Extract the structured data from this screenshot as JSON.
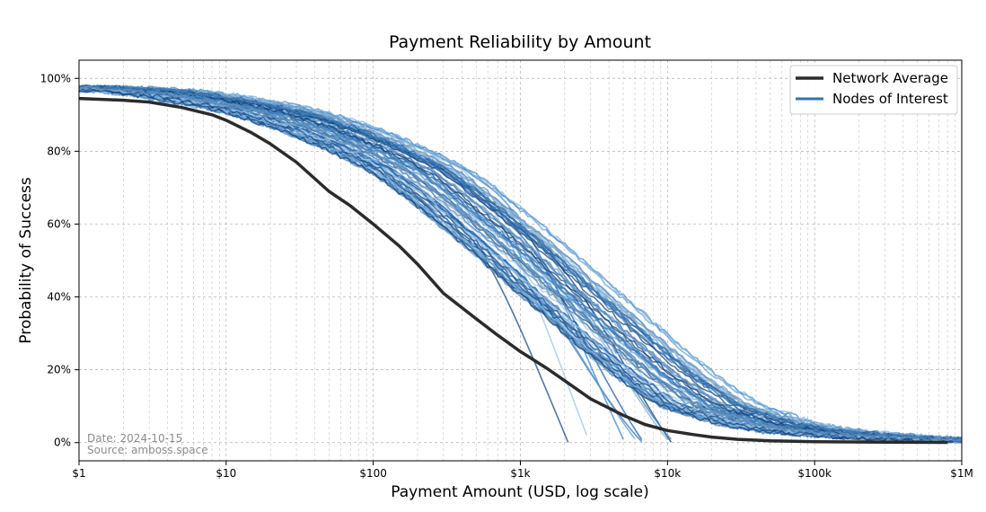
{
  "chart_data": {
    "type": "line",
    "title": "Payment Reliability by Amount",
    "xlabel": "Payment Amount (USD, log scale)",
    "ylabel": "Probability of Success",
    "xscale": "log",
    "xlim": [
      1,
      1000000
    ],
    "ylim": [
      -5,
      105
    ],
    "grid": true,
    "x_ticks": [
      1,
      10,
      100,
      1000,
      10000,
      100000,
      1000000
    ],
    "x_tick_labels": [
      "$1",
      "$10",
      "$100",
      "$1k",
      "$10k",
      "$100k",
      "$1M"
    ],
    "y_ticks": [
      0,
      20,
      40,
      60,
      80,
      100
    ],
    "y_tick_labels": [
      "0%",
      "20%",
      "40%",
      "60%",
      "80%",
      "100%"
    ],
    "legend_position": "top-right",
    "series": [
      {
        "name": "Network Average",
        "color": "#2b2b2b",
        "x": [
          1,
          2,
          3,
          5,
          8,
          10,
          15,
          20,
          30,
          50,
          70,
          100,
          150,
          200,
          300,
          500,
          700,
          1000,
          1500,
          2000,
          3000,
          5000,
          7000,
          10000,
          15000,
          20000,
          30000,
          50000,
          100000,
          300000,
          800000
        ],
        "y": [
          94.5,
          94,
          93.5,
          92,
          90,
          88.5,
          85,
          82,
          77,
          69,
          65,
          60,
          54,
          49,
          41,
          34,
          29.5,
          25,
          20.5,
          17,
          12,
          7.5,
          5,
          3.3,
          2.2,
          1.5,
          0.9,
          0.5,
          0.25,
          0.1,
          0.05
        ]
      },
      {
        "name": "Nodes of Interest",
        "color": "#2e74b5",
        "x": [
          1,
          2,
          3,
          5,
          10,
          20,
          30,
          50,
          100,
          200,
          300,
          500,
          1000,
          2000,
          3000,
          5000,
          10000,
          20000,
          50000,
          100000,
          300000,
          1000000
        ],
        "y": [
          97.5,
          97,
          96.5,
          95.5,
          93.5,
          91,
          89,
          86,
          81,
          75,
          70,
          63,
          53,
          42,
          36,
          28,
          18,
          10,
          5,
          3,
          1.5,
          0.5
        ]
      }
    ]
  },
  "notes": {
    "date": "Date: 2024-10-15",
    "source": "Source: amboss.space"
  }
}
